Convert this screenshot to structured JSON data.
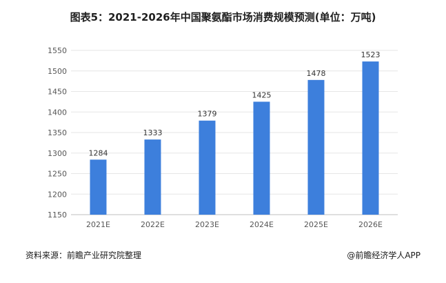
{
  "title": "图表5：2021-2026年中国聚氨酯市场消费规模预测(单位：万吨)",
  "source": "资料来源：前瞻产业研究院整理",
  "credit": "@前瞻经济学人APP",
  "colors": {
    "bar": "#3d7fdc",
    "grid": "#e6e6e6",
    "axis": "#bfbfbf"
  },
  "chart_data": {
    "type": "bar",
    "categories": [
      "2021E",
      "2022E",
      "2023E",
      "2024E",
      "2025E",
      "2026E"
    ],
    "values": [
      1284,
      1333,
      1379,
      1425,
      1478,
      1523
    ],
    "ylim": [
      1150,
      1550
    ],
    "yticks": [
      1150,
      1200,
      1250,
      1300,
      1350,
      1400,
      1450,
      1500,
      1550
    ],
    "grid": true,
    "data_labels": true
  }
}
